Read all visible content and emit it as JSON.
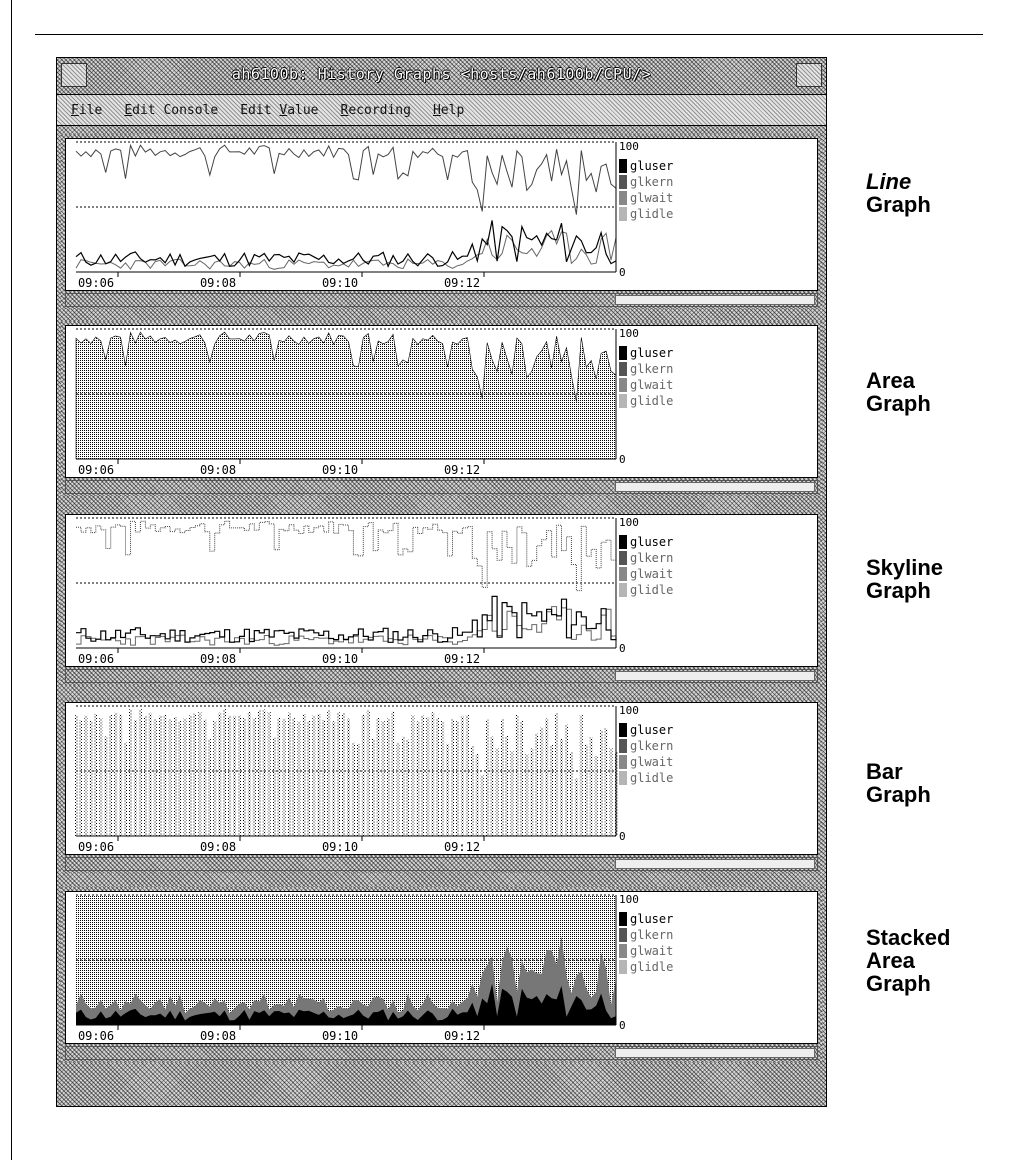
{
  "window": {
    "title": "ah6100b: History Graphs <hosts/ah6100b/CPU/>"
  },
  "menu": [
    {
      "label": "File"
    },
    {
      "label": "Edit Console"
    },
    {
      "label": "Edit Value"
    },
    {
      "label": "Recording"
    },
    {
      "label": "Help"
    }
  ],
  "graph_common": {
    "x_ticks": [
      "09:06",
      "09:08",
      "09:10",
      "09:12"
    ],
    "y_max_label": "100",
    "y_min_label": "0",
    "legend": [
      "gluser",
      "glkern",
      "glwait",
      "glidle"
    ]
  },
  "labels": [
    {
      "lines": [
        "Line",
        "Graph"
      ]
    },
    {
      "lines": [
        "Area",
        "Graph"
      ]
    },
    {
      "lines": [
        "Skyline",
        "Graph"
      ]
    },
    {
      "lines": [
        "Bar",
        "Graph"
      ]
    },
    {
      "lines": [
        "Stacked",
        "Area",
        "Graph"
      ]
    }
  ],
  "chart_data": [
    {
      "type": "line",
      "title": "",
      "categories": [
        "09:06",
        "09:08",
        "09:10",
        "09:12"
      ],
      "ylim": [
        0,
        100
      ],
      "legend": [
        "gluser",
        "glkern",
        "glwait",
        "glidle"
      ]
    },
    {
      "type": "area",
      "title": "",
      "categories": [
        "09:06",
        "09:08",
        "09:10",
        "09:12"
      ],
      "ylim": [
        0,
        100
      ],
      "legend": [
        "gluser",
        "glkern",
        "glwait",
        "glidle"
      ]
    },
    {
      "type": "line",
      "title": "",
      "categories": [
        "09:06",
        "09:08",
        "09:10",
        "09:12"
      ],
      "ylim": [
        0,
        100
      ],
      "legend": [
        "gluser",
        "glkern",
        "glwait",
        "glidle"
      ]
    },
    {
      "type": "bar",
      "title": "",
      "categories": [
        "09:06",
        "09:08",
        "09:10",
        "09:12"
      ],
      "ylim": [
        0,
        100
      ],
      "legend": [
        "gluser",
        "glkern",
        "glwait",
        "glidle"
      ]
    },
    {
      "type": "area",
      "title": "",
      "categories": [
        "09:06",
        "09:08",
        "09:10",
        "09:12"
      ],
      "ylim": [
        0,
        100
      ],
      "legend": [
        "gluser",
        "glkern",
        "glwait",
        "glidle"
      ]
    }
  ]
}
